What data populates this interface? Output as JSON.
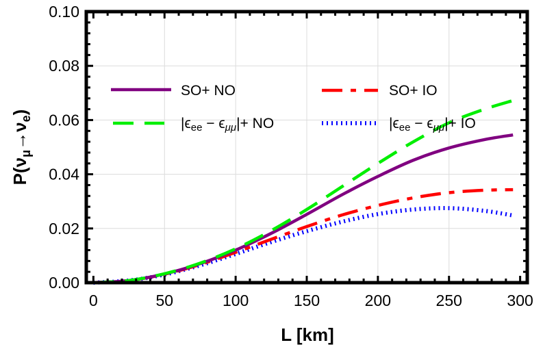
{
  "chart_data": {
    "type": "line",
    "title": "",
    "xlabel": "L [km]",
    "ylabel": "P(ν_μ→ν_e)",
    "xlim": [
      -5,
      305
    ],
    "ylim": [
      0,
      0.1
    ],
    "xticks": [
      0,
      50,
      100,
      150,
      200,
      250,
      300
    ],
    "xtick_labels": [
      "0",
      "50",
      "100",
      "150",
      "200",
      "250",
      "300"
    ],
    "yticks": [
      0.0,
      0.02,
      0.04,
      0.06,
      0.08,
      0.1
    ],
    "ytick_labels": [
      "0.00",
      "0.02",
      "0.04",
      "0.06",
      "0.08",
      "0.10"
    ],
    "grid": true,
    "legend_position": "inside upper-left, two columns",
    "x": [
      0,
      25,
      50,
      75,
      100,
      125,
      150,
      175,
      200,
      225,
      250,
      275,
      295
    ],
    "series": [
      {
        "name": "SO+ NO",
        "color": "#800080",
        "style": "solid",
        "values": [
          0.0,
          0.0008,
          0.0032,
          0.007,
          0.012,
          0.0182,
          0.0252,
          0.0325,
          0.0392,
          0.0452,
          0.0497,
          0.0528,
          0.0545
        ]
      },
      {
        "name": "|ε_ee − ε_μμ|+ NO",
        "color": "#00ee00",
        "style": "dashed",
        "values": [
          0.0,
          0.0008,
          0.0033,
          0.0072,
          0.0125,
          0.0192,
          0.027,
          0.0355,
          0.044,
          0.052,
          0.059,
          0.064,
          0.0672
        ]
      },
      {
        "name": "SO+ IO",
        "color": "#ff0000",
        "style": "dashdot",
        "values": [
          0.0,
          0.0008,
          0.0031,
          0.0067,
          0.0112,
          0.016,
          0.0207,
          0.025,
          0.0285,
          0.0313,
          0.0332,
          0.0341,
          0.0343
        ]
      },
      {
        "name": "|ε_ee − ε_μμ|+ IO",
        "color": "#0000ff",
        "style": "dotted",
        "values": [
          0.0,
          0.0008,
          0.003,
          0.0064,
          0.0106,
          0.015,
          0.019,
          0.0225,
          0.0253,
          0.027,
          0.0275,
          0.0265,
          0.0248
        ]
      }
    ]
  },
  "axes": {
    "x_title": "L [km]",
    "y_title_prefix": "P(",
    "y_title_nu": "ν",
    "y_title_mu": "μ",
    "y_title_arrow": "→",
    "y_title_e": "e",
    "y_title_suffix": ")"
  },
  "legend": {
    "items": [
      {
        "label": "SO+ NO",
        "color": "#800080"
      },
      {
        "label": "SO+ IO",
        "color": "#ff0000"
      },
      {
        "label_prefix": "|ϵ",
        "sub1": "ee",
        "mid": " − ϵ",
        "sub2": "μμ",
        "label_suffix": "|+ NO",
        "color": "#00ee00"
      },
      {
        "label_prefix": "|ϵ",
        "sub1": "ee",
        "mid": " − ϵ",
        "sub2": "μμ",
        "label_suffix": "|+ IO",
        "color": "#0000ff"
      }
    ]
  }
}
